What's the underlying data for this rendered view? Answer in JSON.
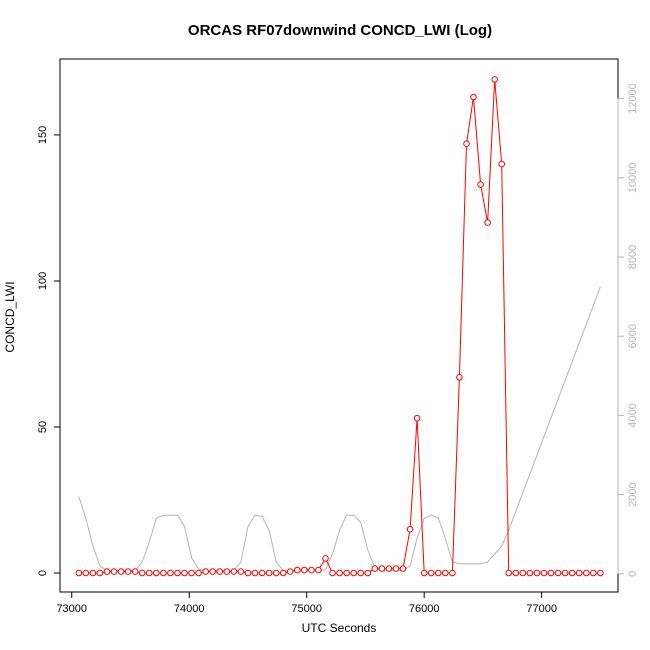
{
  "chart_data": {
    "type": "line",
    "title": "ORCAS RF07downwind CONCD_LWI (Log)",
    "xlabel": "UTC Seconds",
    "ylabel": "CONCD_LWI",
    "xlim": [
      72900,
      77650
    ],
    "ylim": [
      -6.5,
      176
    ],
    "y2lim": [
      -460,
      13000
    ],
    "x_ticks": [
      73000,
      74000,
      75000,
      76000,
      77000
    ],
    "y_ticks": [
      0,
      50,
      100,
      150
    ],
    "y2_ticks": [
      0,
      2000,
      4000,
      6000,
      8000,
      10000,
      12000
    ],
    "grid": false,
    "legend": "none",
    "colors": {
      "primary": "#ff0000",
      "secondary": "#b4b4b4",
      "axis": "#000000"
    },
    "series": [
      {
        "axis": "left",
        "style": "line+open-circles",
        "x": [
          73060,
          73120,
          73180,
          73240,
          73300,
          73360,
          73420,
          73480,
          73540,
          73600,
          73660,
          73720,
          73780,
          73840,
          73900,
          73960,
          74020,
          74080,
          74140,
          74200,
          74260,
          74320,
          74380,
          74440,
          74500,
          74560,
          74620,
          74680,
          74740,
          74800,
          74860,
          74920,
          74980,
          75040,
          75100,
          75160,
          75220,
          75280,
          75340,
          75400,
          75460,
          75520,
          75580,
          75640,
          75700,
          75760,
          75820,
          75880,
          75940,
          76000,
          76060,
          76120,
          76180,
          76240,
          76300,
          76360,
          76420,
          76480,
          76540,
          76600,
          76660,
          76720,
          76780,
          76840,
          76900,
          76960,
          77020,
          77080,
          77140,
          77200,
          77260,
          77320,
          77380,
          77440,
          77500
        ],
        "values": [
          0,
          0,
          0,
          0,
          0.5,
          0.5,
          0.5,
          0.5,
          0.5,
          0,
          0,
          0,
          0,
          0,
          0,
          0,
          0,
          0,
          0.5,
          0.5,
          0.5,
          0.5,
          0.5,
          0.5,
          0,
          0,
          0,
          0,
          0,
          0,
          0.5,
          1,
          1,
          1,
          1,
          5,
          0,
          0,
          0,
          0,
          0,
          0,
          1.5,
          1.5,
          1.5,
          1.5,
          1.5,
          15,
          53,
          0,
          0,
          0,
          0,
          0,
          67,
          147,
          163,
          133,
          120,
          169,
          140,
          0,
          0,
          0,
          0,
          0,
          0,
          0,
          0,
          0,
          0,
          0,
          0,
          0,
          0
        ]
      },
      {
        "axis": "right",
        "style": "line",
        "x": [
          73060,
          73120,
          73180,
          73240,
          73300,
          73360,
          73420,
          73480,
          73540,
          73600,
          73660,
          73720,
          73780,
          73840,
          73900,
          73960,
          74020,
          74080,
          74140,
          74200,
          74260,
          74320,
          74380,
          74440,
          74500,
          74560,
          74620,
          74680,
          74740,
          74800,
          74860,
          74920,
          74980,
          75040,
          75100,
          75160,
          75220,
          75280,
          75340,
          75400,
          75460,
          75520,
          75580,
          75640,
          75700,
          75760,
          75820,
          75880,
          75940,
          76000,
          76060,
          76120,
          76180,
          76240,
          76300,
          76360,
          76420,
          76480,
          76540,
          76600,
          76660,
          76720,
          77500
        ],
        "values": [
          1950,
          1400,
          700,
          200,
          80,
          80,
          80,
          80,
          80,
          300,
          800,
          1400,
          1480,
          1480,
          1480,
          1200,
          400,
          120,
          80,
          80,
          80,
          80,
          80,
          300,
          1200,
          1480,
          1450,
          1100,
          300,
          80,
          80,
          80,
          80,
          80,
          80,
          100,
          500,
          1100,
          1480,
          1480,
          1300,
          600,
          150,
          80,
          80,
          80,
          80,
          200,
          900,
          1400,
          1480,
          1400,
          900,
          300,
          250,
          250,
          250,
          250,
          300,
          500,
          700,
          1100,
          7250
        ]
      }
    ]
  }
}
